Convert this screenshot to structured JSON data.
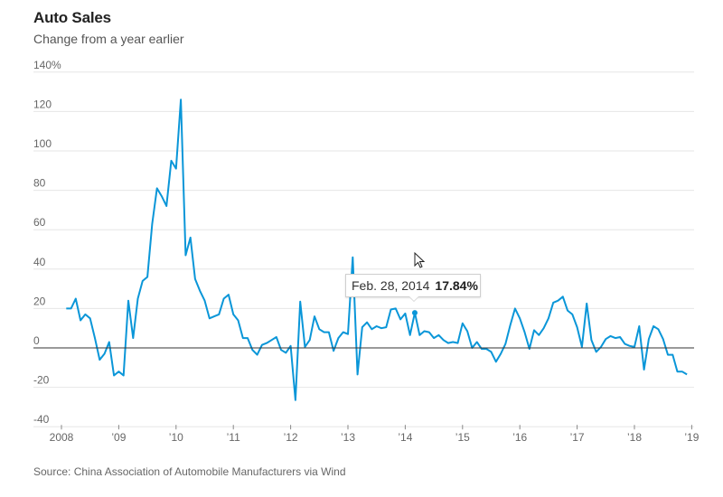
{
  "header": {
    "title": "Auto Sales",
    "subtitle": "Change from a year earlier"
  },
  "footer": {
    "source": "Source: China Association of Automobile Manufacturers via Wind"
  },
  "tooltip": {
    "date": "Feb. 28, 2014",
    "value": "17.84%",
    "point_index": 73
  },
  "colors": {
    "line": "#0a96d8",
    "grid": "#e6e6e6",
    "zero_line": "#333333",
    "text": "#666666"
  },
  "chart_data": {
    "type": "line",
    "title": "Auto Sales",
    "subtitle": "Change from a year earlier",
    "xlabel": "",
    "ylabel": "",
    "ylim": [
      -40,
      140
    ],
    "y_ticks": [
      140,
      120,
      100,
      80,
      60,
      40,
      20,
      0,
      -20,
      -40
    ],
    "y_tick_labels": [
      "140%",
      "120",
      "100",
      "80",
      "60",
      "40",
      "20",
      "0",
      "-20",
      "-40"
    ],
    "x_range_years": [
      2008,
      2019
    ],
    "x_ticks": [
      2008,
      2009,
      2010,
      2011,
      2012,
      2013,
      2014,
      2015,
      2016,
      2017,
      2018,
      2019
    ],
    "x_tick_labels": [
      "2008",
      "’09",
      "’10",
      "’11",
      "’12",
      "’13",
      "’14",
      "’15",
      "’16",
      "’17",
      "’18",
      "’19"
    ],
    "grid": true,
    "legend": "none",
    "x_start": "2008-01",
    "frequency": "monthly",
    "series": [
      {
        "name": "Auto sales, change from a year earlier (%)",
        "values": [
          20,
          20,
          25,
          14,
          17,
          15,
          5,
          -6,
          -3,
          3,
          -14,
          -12,
          -14,
          24,
          5,
          25,
          34,
          36,
          63,
          81,
          77,
          72,
          95,
          91,
          126,
          47,
          56,
          35,
          29,
          24,
          15,
          16,
          17,
          25,
          27,
          17,
          14,
          5,
          5,
          -1,
          -3.5,
          1.5,
          2.5,
          4,
          5.5,
          -1,
          -2.5,
          1,
          -26.5,
          23.5,
          0.5,
          4,
          16,
          9.5,
          8,
          8,
          -1.5,
          5,
          8,
          7,
          46,
          -13.5,
          10.5,
          13,
          9.5,
          11,
          10,
          10.5,
          19.5,
          20,
          14.5,
          17.5,
          6.5,
          17.84,
          6.5,
          8.5,
          8,
          5,
          6.5,
          4,
          2.5,
          3,
          2.5,
          12.5,
          8.5,
          0,
          3,
          -0.5,
          -0.5,
          -2,
          -7,
          -3,
          2,
          11.5,
          20,
          15,
          8,
          -0.5,
          9,
          6.5,
          10,
          15,
          23,
          24,
          26,
          19,
          17,
          10.5,
          0.5,
          22.5,
          4,
          -2,
          0.5,
          4.5,
          6,
          5,
          5.5,
          2,
          1,
          0.5,
          11,
          -11,
          4.5,
          11,
          9.5,
          4.5,
          -3.5,
          -3.5,
          -12,
          -12,
          -13.5
        ]
      }
    ],
    "annotations": [
      {
        "type": "tooltip",
        "x": "2014-02-28",
        "text": "Feb. 28, 2014 17.84%"
      }
    ]
  }
}
